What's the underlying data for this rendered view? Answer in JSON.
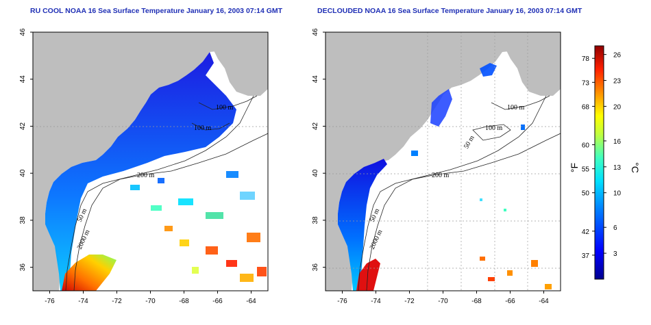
{
  "titles": {
    "left": "RU COOL NOAA 16 Sea Surface Temperature January 16, 2003 07:14 GMT",
    "right": "DECLOUDED NOAA 16 Sea Surface Temperature January 16, 2003 07:14 GMT"
  },
  "map": {
    "lon_ticks": [
      "-76",
      "-74",
      "-72",
      "-70",
      "-68",
      "-66",
      "-64"
    ],
    "lat_ticks": [
      "36",
      "38",
      "40",
      "42",
      "44",
      "46"
    ],
    "lon_range": [
      -77,
      -63
    ],
    "lat_range": [
      35,
      46
    ],
    "contour_labels": [
      "100 m",
      "100 m",
      "50 m",
      "200 m",
      "50 m",
      "2000 m"
    ],
    "land_color": "#bebebe",
    "grid_style": "dotted"
  },
  "colorbar": {
    "fahrenheit_ticks": [
      "78",
      "73",
      "68",
      "60",
      "55",
      "50",
      "42",
      "37"
    ],
    "celsius_ticks": [
      "26",
      "23",
      "20",
      "16",
      "13",
      "10",
      "6",
      "3"
    ],
    "fahrenheit_unit": "°F",
    "celsius_unit": "°C",
    "celsius_range": [
      0,
      27
    ]
  }
}
